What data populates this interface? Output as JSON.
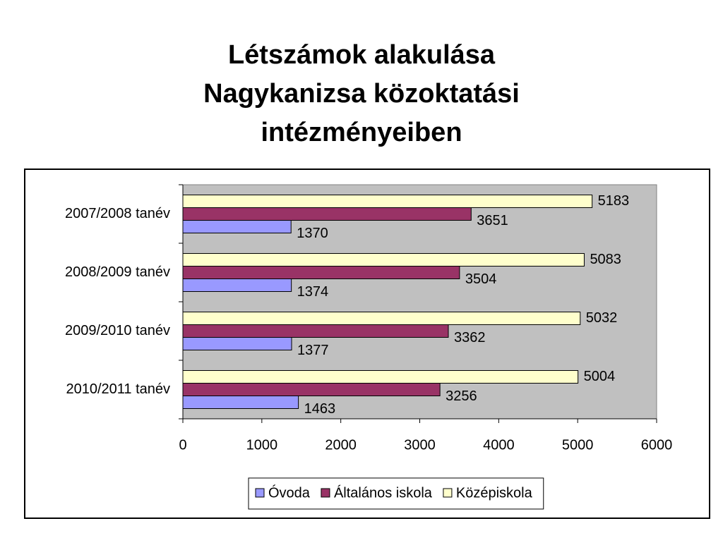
{
  "chart_data": {
    "type": "bar",
    "orientation": "horizontal",
    "title": [
      "Létszámok alakulása",
      "Nagykanizsa közoktatási",
      "intézményeiben"
    ],
    "categories": [
      "2007/2008 tanév",
      "2008/2009 tanév",
      "2009/2010 tanév",
      "2010/2011 tanév"
    ],
    "series": [
      {
        "name": "Óvoda",
        "color": "#9999ff",
        "values": [
          1370,
          1374,
          1377,
          1463
        ]
      },
      {
        "name": "Általános iskola",
        "color": "#993366",
        "values": [
          3651,
          3504,
          3362,
          3256
        ]
      },
      {
        "name": "Középiskola",
        "color": "#ffffcc",
        "values": [
          5183,
          5083,
          5032,
          5004
        ]
      }
    ],
    "xlim": [
      0,
      6000
    ],
    "xticks": [
      0,
      1000,
      2000,
      3000,
      4000,
      5000,
      6000
    ],
    "grid": false,
    "legend": "bottom",
    "plot_background": "#c0c0c0"
  }
}
